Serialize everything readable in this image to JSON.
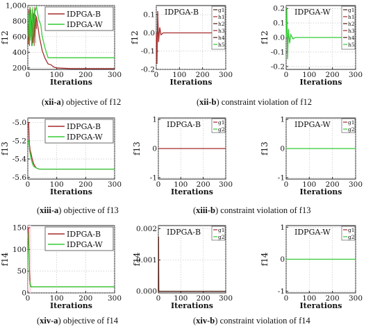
{
  "colors": {
    "B": "#a52a2a",
    "W": "#33cc33",
    "dark": "#4d1b0f",
    "mid": "#6b8e23",
    "shade": "#fbe3ea"
  },
  "captions": [
    {
      "tag": "xii-a",
      "text": "objective of f12"
    },
    {
      "tag": "xii-b",
      "text": "constraint violation of f12"
    },
    {
      "tag": "xiii-a",
      "text": "objective of f13"
    },
    {
      "tag": "xiii-b",
      "text": "constraint violation of f13"
    },
    {
      "tag": "xiv-a",
      "text": "objective of f14"
    },
    {
      "tag": "xiv-b",
      "text": "constraint violation of f14"
    }
  ],
  "chart_data": [
    {
      "id": "xii-a",
      "type": "line",
      "ylabel": "f12",
      "xlabel": "Iterations",
      "xlim": [
        0,
        300
      ],
      "ylim": [
        180,
        1000
      ],
      "xticks": [
        0,
        100,
        200,
        300
      ],
      "yticks": [
        200,
        400,
        600,
        800,
        1000
      ],
      "ytick_labels": [
        "200",
        "400",
        "600",
        "800",
        "1,000"
      ],
      "legend": [
        "IDPGA-B",
        "IDPGA-W"
      ],
      "series": [
        {
          "name": "IDPGA-B",
          "x": [
            0,
            8,
            15,
            22,
            30,
            40,
            50,
            60,
            70,
            80,
            90,
            100,
            120,
            150,
            300
          ],
          "y": [
            500,
            950,
            700,
            900,
            850,
            600,
            420,
            320,
            250,
            240,
            210,
            200,
            195,
            190,
            190
          ]
        },
        {
          "name": "IDPGA-W",
          "x": [
            0,
            8,
            15,
            22,
            30,
            38,
            45,
            50,
            60,
            70,
            300
          ],
          "y": [
            600,
            980,
            480,
            900,
            980,
            820,
            750,
            600,
            450,
            330,
            330
          ]
        }
      ]
    },
    {
      "id": "xii-b",
      "type": "line",
      "title": "IDPGA-B",
      "ylabel": "f12",
      "xlabel": "Iterations",
      "xlim": [
        0,
        300
      ],
      "ylim": [
        -0.2,
        0.15
      ],
      "xticks": [
        0,
        100,
        200,
        300
      ],
      "yticks": [
        -0.2,
        -0.1,
        0.0,
        0.1
      ],
      "ytick_labels": [
        "-0.2",
        "-0.1",
        "0.0",
        "0.1"
      ],
      "legend": [
        "g1",
        "h1",
        "h2",
        "h3",
        "h4",
        "h5"
      ],
      "series": [
        {
          "name": "h1",
          "x": [
            0,
            3,
            6,
            10,
            15,
            20,
            30,
            300
          ],
          "y": [
            0.0,
            -0.17,
            0.12,
            -0.05,
            0.03,
            -0.01,
            0.0,
            0.0
          ]
        }
      ]
    },
    {
      "id": "xii-c",
      "type": "line",
      "title": "IDPGA-W",
      "ylabel": "f12",
      "xlabel": "Iterations",
      "xlim": [
        0,
        300
      ],
      "ylim": [
        -0.22,
        0.22
      ],
      "xticks": [
        0,
        100,
        200,
        300
      ],
      "yticks": [
        -0.2,
        -0.1,
        0.0,
        0.1,
        0.2
      ],
      "ytick_labels": [
        "-0.2",
        "-0.1",
        "0.0",
        "0.1",
        "0.2"
      ],
      "legend": [
        "g1",
        "h1",
        "h2",
        "h3",
        "h4",
        "h5"
      ],
      "series": [
        {
          "name": "h5",
          "x": [
            0,
            3,
            6,
            10,
            15,
            20,
            30,
            40,
            300
          ],
          "y": [
            0.0,
            0.2,
            -0.15,
            0.06,
            -0.04,
            0.02,
            -0.01,
            0.0,
            0.0
          ]
        }
      ]
    },
    {
      "id": "xiii-a",
      "type": "line",
      "ylabel": "f13",
      "xlabel": "Iterations",
      "xlim": [
        0,
        300
      ],
      "ylim": [
        -5.62,
        -4.95
      ],
      "xticks": [
        0,
        100,
        200,
        300
      ],
      "yticks": [
        -5.6,
        -5.4,
        -5.2,
        -5.0
      ],
      "ytick_labels": [
        "-5.6",
        "-5.4",
        "-5.2",
        "-5.0"
      ],
      "legend": [
        "IDPGA-B",
        "IDPGA-W"
      ],
      "series": [
        {
          "name": "IDPGA-B",
          "x": [
            0,
            3,
            5,
            8,
            12,
            15,
            20,
            25,
            30,
            40,
            60,
            300
          ],
          "y": [
            -5.0,
            -5.0,
            -5.22,
            -5.3,
            -5.35,
            -5.4,
            -5.45,
            -5.48,
            -5.5,
            -5.51,
            -5.51,
            -5.51
          ]
        },
        {
          "name": "IDPGA-W",
          "x": [
            0,
            3,
            6,
            10,
            15,
            20,
            30,
            40,
            300
          ],
          "y": [
            -5.2,
            -5.2,
            -5.3,
            -5.38,
            -5.44,
            -5.48,
            -5.5,
            -5.51,
            -5.51
          ]
        }
      ]
    },
    {
      "id": "xiii-b",
      "type": "line",
      "title": "IDPGA-B",
      "ylabel": "f13",
      "xlabel": "Iterations",
      "xlim": [
        0,
        300
      ],
      "ylim": [
        -1.05,
        1.05
      ],
      "xticks": [
        0,
        100,
        200,
        300
      ],
      "yticks": [
        -1,
        0,
        1
      ],
      "ytick_labels": [
        "-1",
        "0",
        "1"
      ],
      "legend": [
        "g1",
        "g2"
      ],
      "series": [
        {
          "name": "g1",
          "x": [
            0,
            300
          ],
          "y": [
            0,
            0
          ]
        }
      ]
    },
    {
      "id": "xiii-c",
      "type": "line",
      "title": "IDPGA-W",
      "ylabel": "f13",
      "xlabel": "Iterations",
      "xlim": [
        0,
        300
      ],
      "ylim": [
        -1.05,
        1.05
      ],
      "xticks": [
        0,
        100,
        200,
        300
      ],
      "yticks": [
        -1,
        0,
        1
      ],
      "ytick_labels": [
        "-1",
        "0",
        "1"
      ],
      "legend": [
        "g1",
        "g2"
      ],
      "series": [
        {
          "name": "g2",
          "x": [
            0,
            300
          ],
          "y": [
            0,
            0
          ]
        }
      ]
    },
    {
      "id": "xiv-a",
      "type": "line",
      "ylabel": "f14",
      "xlabel": "Iterations",
      "xlim": [
        0,
        300
      ],
      "ylim": [
        0,
        155
      ],
      "xticks": [
        0,
        100,
        200,
        300
      ],
      "yticks": [
        0,
        50,
        100,
        150
      ],
      "ytick_labels": [
        "0",
        "50",
        "100",
        "150"
      ],
      "legend": [
        "IDPGA-B",
        "IDPGA-W"
      ],
      "series": [
        {
          "name": "IDPGA-B",
          "x": [
            0,
            2,
            5,
            8,
            12,
            300
          ],
          "y": [
            150,
            150,
            60,
            20,
            14,
            14
          ]
        },
        {
          "name": "IDPGA-W",
          "x": [
            0,
            3,
            6,
            10,
            300
          ],
          "y": [
            140,
            90,
            30,
            14,
            14
          ]
        }
      ]
    },
    {
      "id": "xiv-b",
      "type": "line",
      "title": "IDPGA-B",
      "ylabel": "f14",
      "xlabel": "Iterations",
      "xlim": [
        0,
        300
      ],
      "ylim": [
        -5e-05,
        0.0021
      ],
      "xticks": [
        0,
        100,
        200,
        300
      ],
      "yticks": [
        0.0,
        0.001,
        0.002
      ],
      "ytick_labels": [
        "0.000",
        "0.001",
        "0.002"
      ],
      "legend": [
        "g1",
        "g2"
      ],
      "series": [
        {
          "name": "g1",
          "x": [
            0,
            1,
            2,
            300
          ],
          "y": [
            0.0,
            0.00175,
            0.0,
            0.0
          ]
        }
      ]
    },
    {
      "id": "xiv-c",
      "type": "line",
      "title": "IDPGA-W",
      "ylabel": "f14",
      "xlabel": "Iterations",
      "xlim": [
        0,
        300
      ],
      "ylim": [
        -1.05,
        1.05
      ],
      "xticks": [
        0,
        100,
        200,
        300
      ],
      "yticks": [
        -1,
        0,
        1
      ],
      "ytick_labels": [
        "-1",
        "0",
        "1"
      ],
      "legend": [
        "g1",
        "g2"
      ],
      "series": [
        {
          "name": "g2",
          "x": [
            0,
            300
          ],
          "y": [
            0,
            0
          ]
        }
      ]
    }
  ]
}
